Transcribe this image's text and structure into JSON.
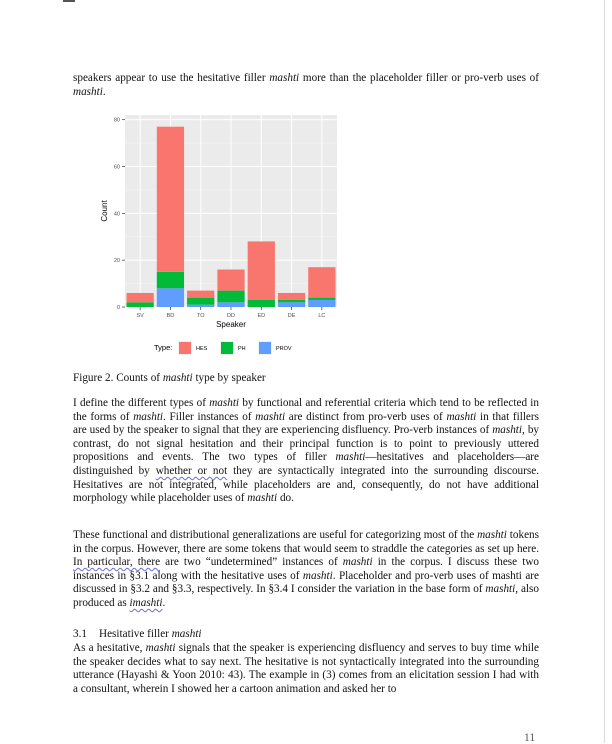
{
  "intro": [
    {
      "t": "speakers appear to use the hesitative filler "
    },
    {
      "t": "mashti",
      "i": true
    },
    {
      "t": " more than the placeholder filler or pro-verb uses of "
    },
    {
      "t": "mashti",
      "i": true
    },
    {
      "t": "."
    }
  ],
  "chart_data": {
    "type": "bar",
    "stacked": true,
    "xlabel": "Speaker",
    "ylabel": "Count",
    "categories": [
      "SV",
      "BD",
      "TO",
      "DD",
      "ED",
      "DE",
      "LC"
    ],
    "ylim": [
      0,
      82
    ],
    "yticks": [
      0,
      20,
      40,
      60,
      80
    ],
    "grid": true,
    "legend_title": "Type:",
    "legend_position": "bottom",
    "series": [
      {
        "name": "PROV",
        "color": "#619CFF",
        "values": [
          0,
          8,
          1,
          2,
          0,
          2,
          3
        ]
      },
      {
        "name": "PH",
        "color": "#00BA38",
        "values": [
          2,
          7,
          3,
          5,
          3,
          1,
          1
        ]
      },
      {
        "name": "HES",
        "color": "#F8766D",
        "values": [
          4,
          62,
          3,
          9,
          25,
          3,
          13
        ]
      }
    ],
    "legend_order": [
      "HES",
      "PH",
      "PROV"
    ]
  },
  "caption": [
    {
      "t": "Figure 2. Counts of "
    },
    {
      "t": "mashti",
      "i": true
    },
    {
      "t": " type by speaker"
    }
  ],
  "para1": [
    {
      "t": "I define the different types of "
    },
    {
      "t": "mashti",
      "i": true
    },
    {
      "t": " by functional and referential criteria which tend to be reflected in the forms of "
    },
    {
      "t": "mashti",
      "i": true
    },
    {
      "t": ". Filler instances of "
    },
    {
      "t": "mashti",
      "i": true
    },
    {
      "t": " are distinct from pro-verb uses of "
    },
    {
      "t": "mashti",
      "i": true
    },
    {
      "t": " in that fillers are used by the speaker to signal that they are experiencing disfluency. Pro-verb instances of "
    },
    {
      "t": "mashti",
      "i": true
    },
    {
      "t": ", by contrast, do not signal hesitation and their principal function is to point to previously uttered propositions and events. The two types of filler "
    },
    {
      "t": "mashti",
      "i": true
    },
    {
      "t": "—hesitatives and placeholders—are distinguished by "
    },
    {
      "t": "whether or not",
      "s": true
    },
    {
      "t": " they are syntactically integrated into the surrounding discourse. Hesitatives are not integrated, while placeholders are and, consequently, do not have additional morphology while placeholder uses of "
    },
    {
      "t": "mashti",
      "i": true
    },
    {
      "t": " do."
    }
  ],
  "para2": [
    {
      "t": "These functional and distributional generalizations are useful for categorizing most of the "
    },
    {
      "t": "mashti",
      "i": true
    },
    {
      "t": " tokens in the corpus. However, there are some tokens that would seem to straddle the categories as set up here. "
    },
    {
      "t": "In particular, there",
      "s": true
    },
    {
      "t": " are two “undetermined” instances of "
    },
    {
      "t": "mashti",
      "i": true
    },
    {
      "t": " in the corpus. I discuss these two instances in §3.1 along with the hesitative uses of "
    },
    {
      "t": "mashti",
      "i": true
    },
    {
      "t": ". Placeholder and pro-verb uses of mashti are discussed in §3.2 and §3.3, respectively. In §3.4 I consider the variation in the base form of "
    },
    {
      "t": "mashti",
      "i": true
    },
    {
      "t": ", also produced as "
    },
    {
      "t": "imashti",
      "i": true,
      "s": true
    },
    {
      "t": "."
    }
  ],
  "heading": {
    "number": "3.1",
    "title_plain": "Hesitative filler ",
    "title_italic": "mashti"
  },
  "para3": [
    {
      "t": "As a hesitative, "
    },
    {
      "t": "mashti",
      "i": true
    },
    {
      "t": " signals that the speaker is experiencing disfluency and serves to buy time while the speaker decides what to say next. The hesitative is not syntactically integrated into the surrounding utterance (Hayashi & Yoon 2010: 43). The example in (3) comes from an elicitation session I had with a consultant, wherein I showed her a cartoon animation and asked her to"
    }
  ],
  "page_number": "11"
}
